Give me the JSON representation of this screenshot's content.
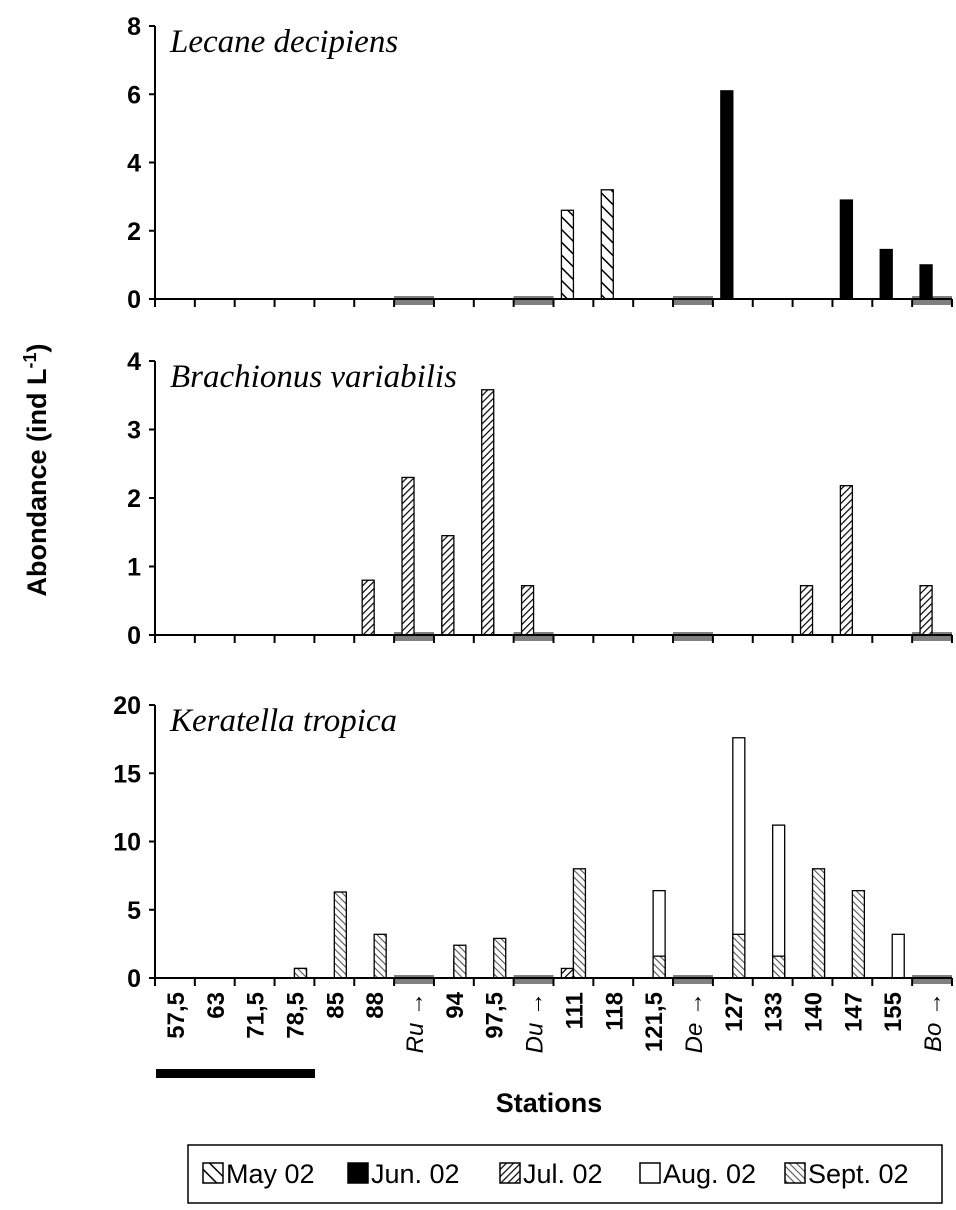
{
  "ylabel": "Abondance (ind L-1)",
  "ylabel_main": "Abondance (ind L",
  "ylabel_sup": "-1",
  "ylabel_close": ")",
  "xlabel": "Stations",
  "chart_data": {
    "type": "bar",
    "stations": [
      "57,5",
      "63",
      "71,5",
      "78,5",
      "85",
      "88",
      "Ru",
      "94",
      "97,5",
      "Du",
      "111",
      "118",
      "121,5",
      "De",
      "127",
      "133",
      "140",
      "147",
      "155",
      "Bo"
    ],
    "tributary_markers": [
      "Ru",
      "Du",
      "De",
      "Bo"
    ],
    "series_names": [
      "May 02",
      "Jun. 02",
      "Jul. 02",
      "Aug. 02",
      "Sept. 02"
    ],
    "panels": [
      {
        "title": "Lecane decipiens",
        "ylim": [
          0,
          8
        ],
        "yticks": [
          "0",
          "2",
          "4",
          "6",
          "8"
        ],
        "bars": [
          {
            "station": "111",
            "series": "May 02",
            "value": 2.6
          },
          {
            "station": "118",
            "series": "May 02",
            "value": 3.2
          },
          {
            "station": "127",
            "series": "Jun. 02",
            "value": 6.1
          },
          {
            "station": "147",
            "series": "Jun. 02",
            "value": 2.9
          },
          {
            "station": "155",
            "series": "Jun. 02",
            "value": 1.45
          },
          {
            "station": "Bo",
            "series": "Jun. 02",
            "value": 1.0
          }
        ]
      },
      {
        "title": "Brachionus variabilis",
        "ylim": [
          0,
          4
        ],
        "yticks": [
          "0",
          "1",
          "2",
          "3",
          "4"
        ],
        "bars": [
          {
            "station": "88",
            "series": "Jul. 02",
            "value": 0.8
          },
          {
            "station": "Ru",
            "series": "Jul. 02",
            "value": 2.3
          },
          {
            "station": "94",
            "series": "Jun. 02",
            "value": 0.42
          },
          {
            "station": "94",
            "series": "Jul. 02",
            "value": 1.45
          },
          {
            "station": "97,5",
            "series": "Jun. 02",
            "value": 0.36
          },
          {
            "station": "97,5",
            "series": "Jul. 02",
            "value": 3.58
          },
          {
            "station": "Du",
            "series": "Jul. 02",
            "value": 0.72
          },
          {
            "station": "140",
            "series": "Jul. 02",
            "value": 0.72
          },
          {
            "station": "147",
            "series": "Jul. 02",
            "value": 2.18
          },
          {
            "station": "Bo",
            "series": "Jul. 02",
            "value": 0.72
          }
        ]
      },
      {
        "title": "Keratella tropica",
        "ylim": [
          0,
          20
        ],
        "yticks": [
          "0",
          "5",
          "10",
          "15",
          "20"
        ],
        "bars": [
          {
            "station": "78,5",
            "series": "Aug. 02",
            "value": 0.7
          },
          {
            "station": "78,5",
            "series": "Sept. 02",
            "value": 0.7
          },
          {
            "station": "85",
            "series": "Sept. 02",
            "value": 6.3
          },
          {
            "station": "88",
            "series": "Sept. 02",
            "value": 3.2
          },
          {
            "station": "94",
            "series": "Aug. 02",
            "value": 1.4
          },
          {
            "station": "94",
            "series": "Sept. 02",
            "value": 2.4
          },
          {
            "station": "97,5",
            "series": "Sept. 02",
            "value": 2.9
          },
          {
            "station": "111",
            "series": "Jul. 02",
            "value": 0.7
          },
          {
            "station": "111",
            "series": "Aug. 02",
            "value": 1.6
          },
          {
            "station": "111",
            "series": "Sept. 02",
            "value": 8.0
          },
          {
            "station": "121,5",
            "series": "Aug. 02",
            "value": 6.4
          },
          {
            "station": "121,5",
            "series": "Sept. 02",
            "value": 1.6
          },
          {
            "station": "127",
            "series": "Aug. 02",
            "value": 17.6
          },
          {
            "station": "127",
            "series": "Sept. 02",
            "value": 3.2
          },
          {
            "station": "133",
            "series": "Aug. 02",
            "value": 11.2
          },
          {
            "station": "133",
            "series": "Sept. 02",
            "value": 1.6
          },
          {
            "station": "140",
            "series": "Aug. 02",
            "value": 6.4
          },
          {
            "station": "140",
            "series": "Sept. 02",
            "value": 8.0
          },
          {
            "station": "147",
            "series": "Aug. 02",
            "value": 3.2
          },
          {
            "station": "147",
            "series": "Sept. 02",
            "value": 6.4
          },
          {
            "station": "155",
            "series": "Aug. 02",
            "value": 3.2
          }
        ]
      }
    ]
  }
}
